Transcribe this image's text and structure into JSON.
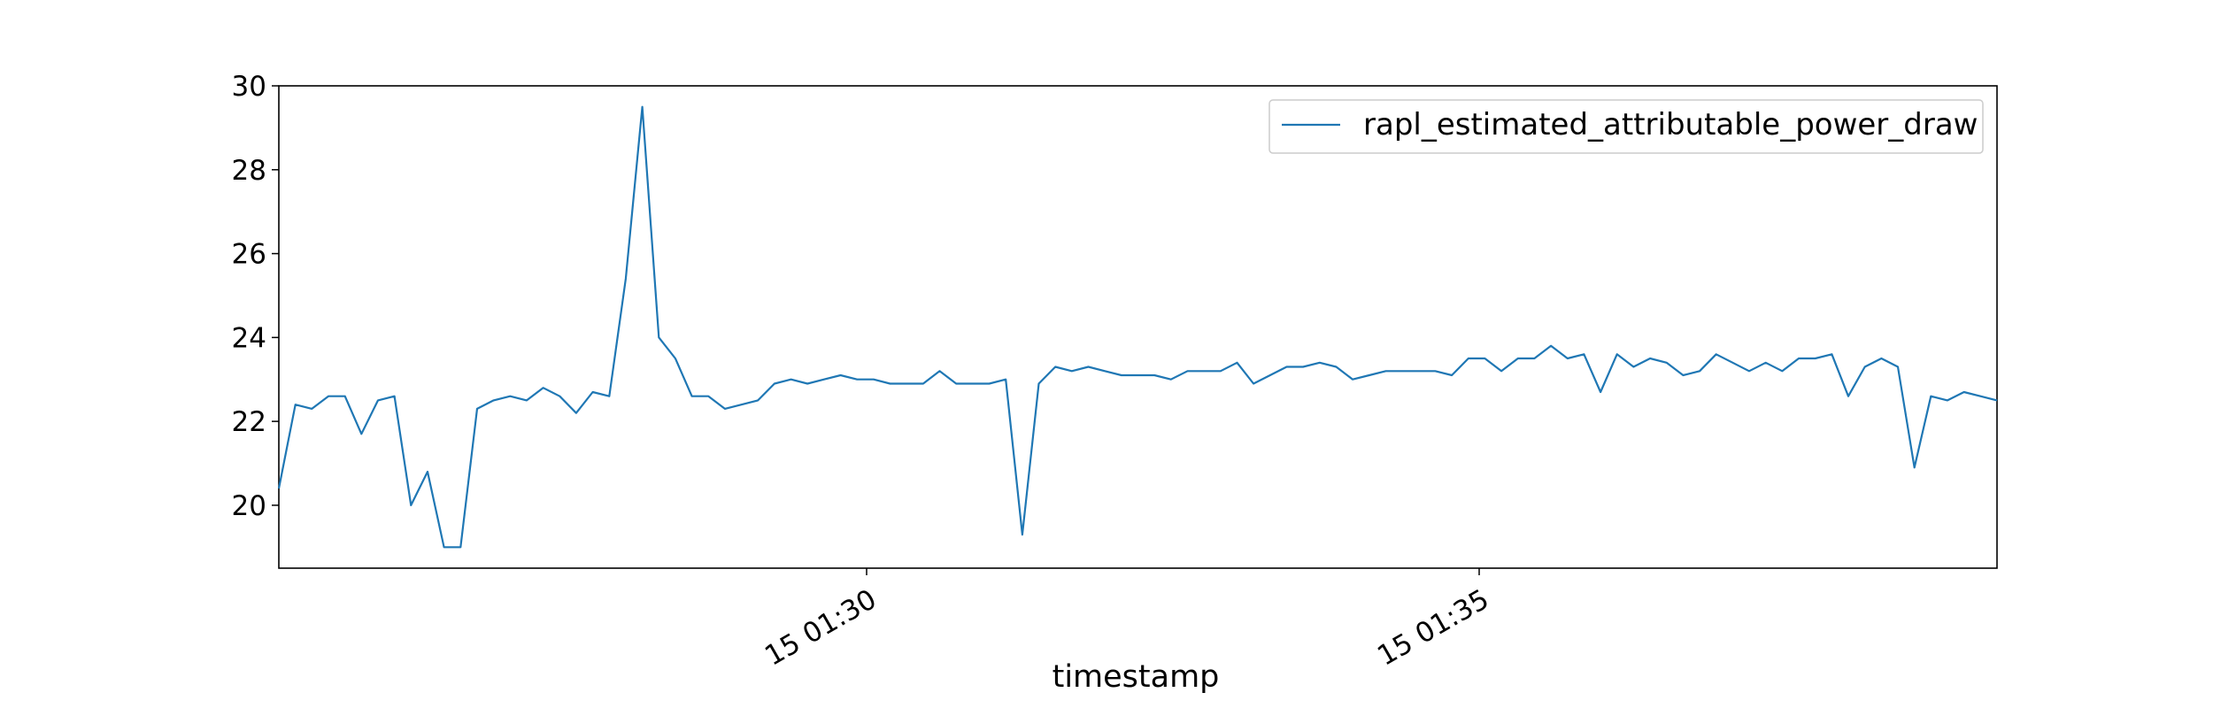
{
  "chart_data": {
    "type": "line",
    "title": "",
    "xlabel": "timestamp",
    "ylabel": "",
    "x_tick_labels": [
      "15 01:30",
      "15 01:35"
    ],
    "y_ticks": [
      20,
      22,
      24,
      26,
      28,
      30
    ],
    "ylim": [
      18.5,
      30
    ],
    "grid": false,
    "legend_placement": "top-right",
    "series": [
      {
        "name": "rapl_estimated_attributable_power_draw",
        "color": "#1f77b4",
        "values": [
          20.4,
          22.4,
          22.3,
          22.6,
          22.6,
          21.7,
          22.5,
          22.6,
          20.0,
          20.8,
          19.0,
          19.0,
          22.3,
          22.5,
          22.6,
          22.5,
          22.8,
          22.6,
          22.2,
          22.7,
          22.6,
          25.4,
          29.5,
          24.0,
          23.5,
          22.6,
          22.6,
          22.3,
          22.4,
          22.5,
          22.9,
          23.0,
          22.9,
          23.0,
          23.1,
          23.0,
          23.0,
          22.9,
          22.9,
          22.9,
          23.2,
          22.9,
          22.9,
          22.9,
          23.0,
          19.3,
          22.9,
          23.3,
          23.2,
          23.3,
          23.2,
          23.1,
          23.1,
          23.1,
          23.0,
          23.2,
          23.2,
          23.2,
          23.4,
          22.9,
          23.1,
          23.3,
          23.3,
          23.4,
          23.3,
          23.0,
          23.1,
          23.2,
          23.2,
          23.2,
          23.2,
          23.1,
          23.5,
          23.5,
          23.2,
          23.5,
          23.5,
          23.8,
          23.5,
          23.6,
          22.7,
          23.6,
          23.3,
          23.5,
          23.4,
          23.1,
          23.2,
          23.6,
          23.4,
          23.2,
          23.4,
          23.2,
          23.5,
          23.5,
          23.6,
          22.6,
          23.3,
          23.5,
          23.3,
          20.9,
          22.6,
          22.5,
          22.7,
          22.6,
          22.5
        ]
      }
    ]
  }
}
